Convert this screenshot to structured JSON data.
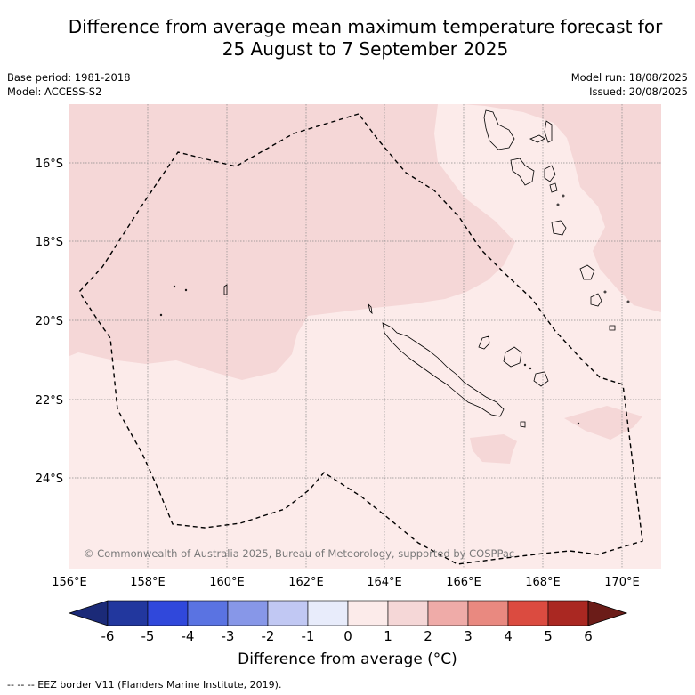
{
  "title": {
    "line1": "Difference from average mean maximum temperature forecast for",
    "line2": "25 August to 7 September 2025"
  },
  "meta": {
    "base_period": "Base period: 1981-2018",
    "model": "Model: ACCESS-S2",
    "model_run": "Model run: 18/08/2025",
    "issued": "Issued: 20/08/2025"
  },
  "map": {
    "lat_ticks": [
      "16°S",
      "18°S",
      "20°S",
      "22°S",
      "24°S"
    ],
    "lon_ticks": [
      "156°E",
      "158°E",
      "160°E",
      "162°E",
      "164°E",
      "166°E",
      "168°E",
      "170°E"
    ],
    "copyright": "© Commonwealth of Australia 2025, Bureau of Meteorology, supported by COSPPac",
    "colors": {
      "anomaly_0_1": "#fcebea",
      "anomaly_1_2": "#f5d7d7",
      "land_outline": "#000000",
      "grid": "#8c8c8c"
    }
  },
  "colorbar": {
    "labels": [
      "-6",
      "-5",
      "-4",
      "-3",
      "-2",
      "-1",
      "0",
      "1",
      "2",
      "3",
      "4",
      "5",
      "6"
    ],
    "colors": [
      "#22379e",
      "#3048db",
      "#5a73e2",
      "#8797e8",
      "#c1c8f3",
      "#e8ecfb",
      "#fcebea",
      "#f5d7d7",
      "#efaba8",
      "#e98980",
      "#db4b40",
      "#aa2822"
    ],
    "under_color": "#1b2a78",
    "over_color": "#6b1c18",
    "title": "Difference from average (°C)"
  },
  "footnote": "--  --  -- EEZ border V11 (Flanders Marine Institute, 2019)."
}
